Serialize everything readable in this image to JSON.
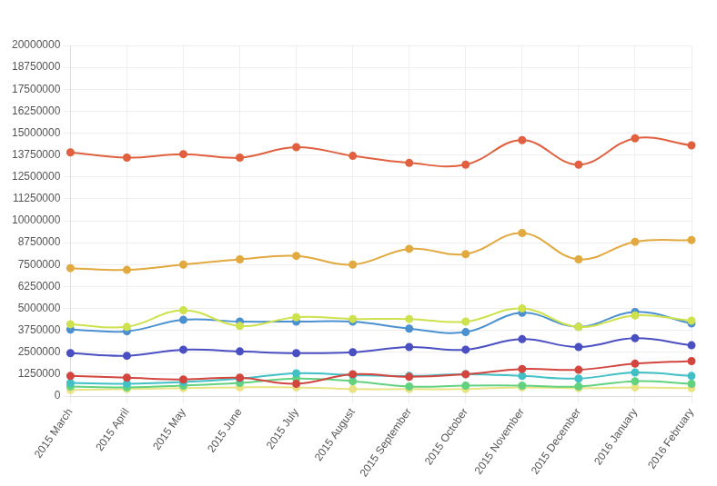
{
  "chart_data": {
    "type": "line",
    "categories": [
      "2015 March",
      "2015 April",
      "2015 May",
      "2015 June",
      "2015 July",
      "2015 August",
      "2015 September",
      "2015 October",
      "2015 November",
      "2015 December",
      "2016 January",
      "2016 February"
    ],
    "series": [
      {
        "color": "#e0603f",
        "values": [
          13900000,
          13600000,
          13800000,
          13600000,
          14200000,
          13700000,
          13300000,
          13200000,
          14600000,
          13200000,
          14700000,
          14300000
        ]
      },
      {
        "color": "#e2a93f",
        "values": [
          7300000,
          7200000,
          7500000,
          7800000,
          8000000,
          7500000,
          8400000,
          8100000,
          9300000,
          7800000,
          8800000,
          8900000
        ]
      },
      {
        "color": "#cde24c",
        "values": [
          4100000,
          3950000,
          4900000,
          4000000,
          4500000,
          4400000,
          4400000,
          4250000,
          5000000,
          3950000,
          4600000,
          4300000
        ]
      },
      {
        "color": "#4b91d1",
        "values": [
          3800000,
          3700000,
          4350000,
          4250000,
          4250000,
          4250000,
          3850000,
          3650000,
          4750000,
          3950000,
          4800000,
          4150000
        ]
      },
      {
        "color": "#4a4fc2",
        "values": [
          2450000,
          2300000,
          2650000,
          2550000,
          2450000,
          2500000,
          2800000,
          2650000,
          3250000,
          2800000,
          3300000,
          2900000
        ]
      },
      {
        "color": "#d2463f",
        "values": [
          1150000,
          1050000,
          950000,
          1050000,
          700000,
          1250000,
          1100000,
          1250000,
          1550000,
          1500000,
          1850000,
          2000000
        ]
      },
      {
        "color": "#41c0c6",
        "values": [
          750000,
          700000,
          800000,
          1000000,
          1300000,
          1200000,
          1150000,
          1250000,
          1150000,
          1000000,
          1350000,
          1150000
        ]
      },
      {
        "color": "#62d27f",
        "values": [
          550000,
          500000,
          600000,
          750000,
          1000000,
          850000,
          550000,
          600000,
          600000,
          550000,
          850000,
          700000
        ]
      },
      {
        "color": "#e9e383",
        "values": [
          350000,
          400000,
          450000,
          500000,
          500000,
          400000,
          400000,
          400000,
          500000,
          450000,
          500000,
          450000
        ]
      }
    ],
    "ylim": [
      0,
      20000000
    ],
    "yticks": [
      0,
      1250000,
      2500000,
      3750000,
      5000000,
      6250000,
      7500000,
      8750000,
      10000000,
      11250000,
      12500000,
      13750000,
      15000000,
      16250000,
      17500000,
      18750000,
      20000000
    ],
    "grid": true,
    "marker": "circle"
  }
}
